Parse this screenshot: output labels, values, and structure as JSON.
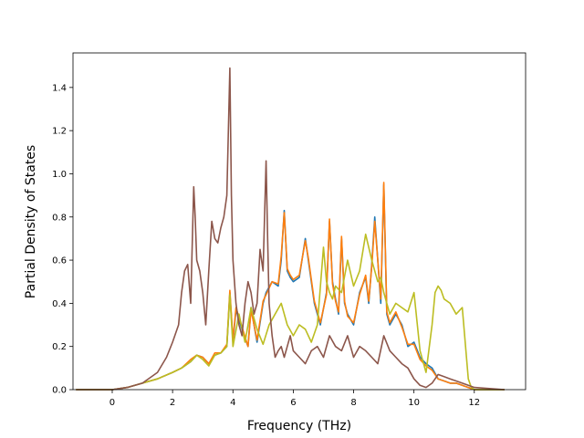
{
  "chart_data": {
    "type": "line",
    "title": "",
    "xlabel": "Frequency (THz)",
    "ylabel": "Partial Density of States",
    "xlim": [
      -1.3,
      13.7
    ],
    "ylim": [
      0,
      1.56
    ],
    "xticks": [
      0,
      2,
      4,
      6,
      8,
      10,
      12
    ],
    "yticks": [
      0.0,
      0.2,
      0.4,
      0.6,
      0.8,
      1.0,
      1.2,
      1.4
    ],
    "xtick_labels": [
      "0",
      "2",
      "4",
      "6",
      "8",
      "10",
      "12"
    ],
    "ytick_labels": [
      "0.0",
      "0.2",
      "0.4",
      "0.6",
      "0.8",
      "1.0",
      "1.2",
      "1.4"
    ],
    "grid": false,
    "legend": "none",
    "series": [
      {
        "color": "#1f77b4",
        "x": [
          -1.2,
          0,
          0.5,
          1,
          1.5,
          2,
          2.3,
          2.6,
          2.8,
          3,
          3.2,
          3.4,
          3.6,
          3.8,
          3.9,
          4.0,
          4.1,
          4.3,
          4.5,
          4.6,
          4.8,
          5.0,
          5.1,
          5.3,
          5.5,
          5.6,
          5.7,
          5.8,
          5.9,
          6.0,
          6.2,
          6.4,
          6.5,
          6.7,
          6.9,
          7.1,
          7.2,
          7.3,
          7.4,
          7.5,
          7.6,
          7.7,
          7.8,
          8.0,
          8.2,
          8.4,
          8.5,
          8.6,
          8.7,
          8.9,
          9.0,
          9.1,
          9.2,
          9.4,
          9.6,
          9.8,
          10.0,
          10.2,
          10.4,
          10.6,
          10.8,
          11.0,
          11.2,
          11.4,
          11.6,
          11.8,
          12.0,
          13.0
        ],
        "y": [
          0,
          0,
          0.01,
          0.03,
          0.05,
          0.08,
          0.1,
          0.13,
          0.16,
          0.15,
          0.12,
          0.16,
          0.17,
          0.2,
          0.45,
          0.22,
          0.37,
          0.28,
          0.2,
          0.38,
          0.22,
          0.4,
          0.45,
          0.5,
          0.48,
          0.6,
          0.83,
          0.55,
          0.52,
          0.5,
          0.52,
          0.7,
          0.6,
          0.4,
          0.3,
          0.45,
          0.78,
          0.5,
          0.42,
          0.35,
          0.7,
          0.4,
          0.35,
          0.3,
          0.45,
          0.52,
          0.4,
          0.58,
          0.8,
          0.4,
          0.95,
          0.35,
          0.3,
          0.35,
          0.3,
          0.2,
          0.22,
          0.15,
          0.12,
          0.1,
          0.05,
          0.04,
          0.03,
          0.03,
          0.02,
          0.01,
          0,
          0
        ]
      },
      {
        "color": "#ff7f0e",
        "x": [
          -1.2,
          0,
          0.5,
          1,
          1.5,
          2,
          2.3,
          2.6,
          2.8,
          3,
          3.2,
          3.4,
          3.6,
          3.8,
          3.9,
          4.0,
          4.1,
          4.3,
          4.5,
          4.6,
          4.8,
          5.0,
          5.1,
          5.3,
          5.5,
          5.6,
          5.7,
          5.8,
          5.9,
          6.0,
          6.2,
          6.4,
          6.5,
          6.7,
          6.9,
          7.1,
          7.2,
          7.3,
          7.4,
          7.5,
          7.6,
          7.7,
          7.8,
          8.0,
          8.2,
          8.4,
          8.5,
          8.6,
          8.7,
          8.9,
          9.0,
          9.1,
          9.2,
          9.4,
          9.6,
          9.8,
          10.0,
          10.2,
          10.4,
          10.6,
          10.8,
          11.0,
          11.2,
          11.4,
          11.6,
          11.8,
          12.0,
          13.0
        ],
        "y": [
          0,
          0,
          0.01,
          0.03,
          0.05,
          0.08,
          0.1,
          0.14,
          0.16,
          0.15,
          0.12,
          0.17,
          0.17,
          0.21,
          0.46,
          0.23,
          0.38,
          0.29,
          0.2,
          0.37,
          0.23,
          0.41,
          0.44,
          0.5,
          0.49,
          0.62,
          0.82,
          0.56,
          0.53,
          0.51,
          0.53,
          0.69,
          0.61,
          0.41,
          0.31,
          0.44,
          0.79,
          0.49,
          0.41,
          0.36,
          0.71,
          0.41,
          0.34,
          0.31,
          0.44,
          0.53,
          0.41,
          0.57,
          0.78,
          0.42,
          0.96,
          0.36,
          0.31,
          0.36,
          0.29,
          0.21,
          0.21,
          0.14,
          0.11,
          0.09,
          0.05,
          0.04,
          0.03,
          0.03,
          0.02,
          0.01,
          0,
          0
        ]
      },
      {
        "color": "#bcbd22",
        "x": [
          -1.2,
          0,
          0.5,
          1,
          1.5,
          2,
          2.3,
          2.6,
          2.8,
          3,
          3.2,
          3.4,
          3.6,
          3.8,
          3.9,
          4.0,
          4.2,
          4.4,
          4.6,
          4.8,
          5.0,
          5.2,
          5.4,
          5.6,
          5.8,
          6.0,
          6.2,
          6.4,
          6.6,
          6.8,
          7.0,
          7.1,
          7.2,
          7.3,
          7.4,
          7.6,
          7.8,
          8.0,
          8.2,
          8.4,
          8.6,
          8.8,
          8.9,
          9.0,
          9.2,
          9.4,
          9.6,
          9.8,
          10.0,
          10.2,
          10.4,
          10.6,
          10.7,
          10.8,
          10.9,
          11.0,
          11.2,
          11.4,
          11.6,
          11.8,
          11.9,
          12.0,
          13.0
        ],
        "y": [
          0,
          0,
          0.01,
          0.03,
          0.05,
          0.08,
          0.1,
          0.13,
          0.16,
          0.14,
          0.11,
          0.16,
          0.17,
          0.2,
          0.44,
          0.2,
          0.35,
          0.22,
          0.38,
          0.28,
          0.21,
          0.3,
          0.35,
          0.4,
          0.3,
          0.25,
          0.3,
          0.28,
          0.22,
          0.3,
          0.66,
          0.5,
          0.45,
          0.42,
          0.48,
          0.45,
          0.6,
          0.48,
          0.55,
          0.72,
          0.6,
          0.5,
          0.52,
          0.45,
          0.35,
          0.4,
          0.38,
          0.36,
          0.45,
          0.18,
          0.08,
          0.3,
          0.45,
          0.48,
          0.46,
          0.42,
          0.4,
          0.35,
          0.38,
          0.05,
          0.01,
          0,
          0
        ]
      },
      {
        "color": "#8c564b",
        "x": [
          -1.2,
          0,
          0.5,
          1,
          1.5,
          1.8,
          2.0,
          2.2,
          2.3,
          2.4,
          2.5,
          2.6,
          2.7,
          2.75,
          2.8,
          2.9,
          3.0,
          3.1,
          3.2,
          3.3,
          3.4,
          3.5,
          3.6,
          3.7,
          3.8,
          3.9,
          3.95,
          4.0,
          4.1,
          4.2,
          4.3,
          4.4,
          4.5,
          4.6,
          4.7,
          4.8,
          4.9,
          5.0,
          5.1,
          5.15,
          5.2,
          5.3,
          5.4,
          5.5,
          5.6,
          5.7,
          5.8,
          5.9,
          6.0,
          6.2,
          6.4,
          6.6,
          6.8,
          7.0,
          7.2,
          7.4,
          7.6,
          7.8,
          8.0,
          8.2,
          8.4,
          8.6,
          8.8,
          9.0,
          9.2,
          9.4,
          9.6,
          9.8,
          10.0,
          10.2,
          10.4,
          10.6,
          10.8,
          11.0,
          11.2,
          11.4,
          11.6,
          11.8,
          12.0,
          13.0
        ],
        "y": [
          0,
          0,
          0.01,
          0.03,
          0.08,
          0.15,
          0.22,
          0.3,
          0.45,
          0.55,
          0.58,
          0.4,
          0.94,
          0.8,
          0.6,
          0.55,
          0.45,
          0.3,
          0.55,
          0.78,
          0.7,
          0.68,
          0.75,
          0.8,
          0.9,
          1.49,
          0.9,
          0.6,
          0.4,
          0.3,
          0.25,
          0.4,
          0.5,
          0.45,
          0.35,
          0.4,
          0.65,
          0.55,
          1.06,
          0.7,
          0.4,
          0.25,
          0.15,
          0.18,
          0.2,
          0.15,
          0.2,
          0.25,
          0.18,
          0.15,
          0.12,
          0.18,
          0.2,
          0.15,
          0.25,
          0.2,
          0.18,
          0.25,
          0.15,
          0.2,
          0.18,
          0.15,
          0.12,
          0.25,
          0.18,
          0.15,
          0.12,
          0.1,
          0.05,
          0.02,
          0.01,
          0.03,
          0.07,
          0.06,
          0.05,
          0.04,
          0.03,
          0.02,
          0.01,
          0
        ]
      }
    ]
  }
}
